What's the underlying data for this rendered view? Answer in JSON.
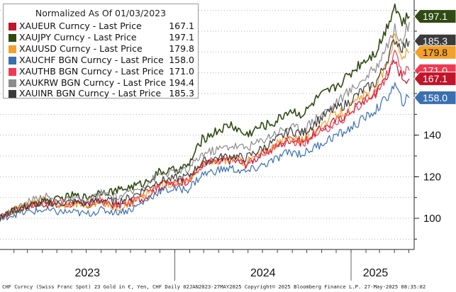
{
  "chart_data": {
    "type": "line",
    "title": "Normalized As Of 01/03/2023",
    "x_start": "2023-01-03",
    "x_end": "2025-05-27",
    "x_tick_labels": [
      "2023",
      "2024",
      "2025"
    ],
    "y_ticks": [
      100,
      120,
      140
    ],
    "ylim": [
      85,
      205
    ],
    "grid": "horizontal-dotted",
    "legend_position": "top-left",
    "series": [
      {
        "name": "XAUEUR Curncy - Last Price",
        "last": "167.1",
        "last_value": 167.1,
        "color": "#c0152a",
        "values": [
          [
            0,
            100
          ],
          [
            30,
            104
          ],
          [
            60,
            106
          ],
          [
            90,
            107
          ],
          [
            120,
            106
          ],
          [
            150,
            107
          ],
          [
            180,
            106
          ],
          [
            210,
            108
          ],
          [
            240,
            106
          ],
          [
            270,
            107
          ],
          [
            300,
            110
          ],
          [
            330,
            115
          ],
          [
            360,
            117
          ],
          [
            390,
            118
          ],
          [
            420,
            126
          ],
          [
            450,
            127
          ],
          [
            480,
            128
          ],
          [
            510,
            126
          ],
          [
            540,
            130
          ],
          [
            570,
            134
          ],
          [
            600,
            138
          ],
          [
            630,
            137
          ],
          [
            660,
            142
          ],
          [
            690,
            146
          ],
          [
            720,
            150
          ],
          [
            750,
            156
          ],
          [
            780,
            160
          ],
          [
            800,
            168
          ],
          [
            820,
            175
          ],
          [
            835,
            168
          ],
          [
            850,
            167.1
          ]
        ]
      },
      {
        "name": "XAUJPY Curncy - Last Price",
        "last": "197.1",
        "last_value": 197.1,
        "color": "#2f4a12",
        "values": [
          [
            0,
            100
          ],
          [
            30,
            104
          ],
          [
            60,
            106
          ],
          [
            90,
            108
          ],
          [
            120,
            109
          ],
          [
            150,
            111
          ],
          [
            180,
            110
          ],
          [
            210,
            113
          ],
          [
            240,
            113
          ],
          [
            270,
            115
          ],
          [
            300,
            117
          ],
          [
            330,
            122
          ],
          [
            360,
            123
          ],
          [
            390,
            125
          ],
          [
            420,
            138
          ],
          [
            450,
            142
          ],
          [
            480,
            145
          ],
          [
            510,
            140
          ],
          [
            540,
            144
          ],
          [
            570,
            146
          ],
          [
            600,
            152
          ],
          [
            630,
            150
          ],
          [
            660,
            158
          ],
          [
            690,
            162
          ],
          [
            720,
            168
          ],
          [
            750,
            175
          ],
          [
            780,
            180
          ],
          [
            800,
            190
          ],
          [
            820,
            203
          ],
          [
            835,
            194
          ],
          [
            850,
            197.1
          ]
        ]
      },
      {
        "name": "XAUUSD Curncy - Last Price",
        "last": "179.8",
        "last_value": 179.8,
        "color": "#f4a02a",
        "values": [
          [
            0,
            100
          ],
          [
            30,
            104
          ],
          [
            60,
            107
          ],
          [
            90,
            109
          ],
          [
            120,
            106
          ],
          [
            150,
            107
          ],
          [
            180,
            106
          ],
          [
            210,
            108
          ],
          [
            240,
            105
          ],
          [
            270,
            107
          ],
          [
            300,
            111
          ],
          [
            330,
            116
          ],
          [
            360,
            117
          ],
          [
            390,
            118
          ],
          [
            420,
            126
          ],
          [
            450,
            127
          ],
          [
            480,
            129
          ],
          [
            510,
            127
          ],
          [
            540,
            131
          ],
          [
            570,
            135
          ],
          [
            600,
            139
          ],
          [
            630,
            138
          ],
          [
            660,
            144
          ],
          [
            690,
            149
          ],
          [
            720,
            152
          ],
          [
            750,
            158
          ],
          [
            780,
            163
          ],
          [
            800,
            172
          ],
          [
            820,
            188
          ],
          [
            835,
            178
          ],
          [
            850,
            179.8
          ]
        ]
      },
      {
        "name": "XAUCHF BGN Curncy - Last Price",
        "last": "158.0",
        "last_value": 158.0,
        "color": "#3a6fb0",
        "values": [
          [
            0,
            100
          ],
          [
            30,
            102
          ],
          [
            60,
            103
          ],
          [
            90,
            104
          ],
          [
            120,
            103
          ],
          [
            150,
            103
          ],
          [
            180,
            102
          ],
          [
            210,
            104
          ],
          [
            240,
            103
          ],
          [
            270,
            104
          ],
          [
            300,
            108
          ],
          [
            330,
            113
          ],
          [
            360,
            114
          ],
          [
            390,
            114
          ],
          [
            420,
            121
          ],
          [
            450,
            123
          ],
          [
            480,
            124
          ],
          [
            510,
            122
          ],
          [
            540,
            125
          ],
          [
            570,
            128
          ],
          [
            600,
            132
          ],
          [
            630,
            131
          ],
          [
            660,
            135
          ],
          [
            690,
            139
          ],
          [
            720,
            142
          ],
          [
            750,
            147
          ],
          [
            780,
            152
          ],
          [
            800,
            157
          ],
          [
            820,
            164
          ],
          [
            835,
            156
          ],
          [
            850,
            158.0
          ]
        ]
      },
      {
        "name": "XAUTHB BGN Curncy - Last Price",
        "last": "171.0",
        "last_value": 171.0,
        "color": "#ee3a52",
        "values": [
          [
            0,
            100
          ],
          [
            30,
            104
          ],
          [
            60,
            106
          ],
          [
            90,
            108
          ],
          [
            120,
            107
          ],
          [
            150,
            108
          ],
          [
            180,
            107
          ],
          [
            210,
            109
          ],
          [
            240,
            107
          ],
          [
            270,
            108
          ],
          [
            300,
            112
          ],
          [
            330,
            116
          ],
          [
            360,
            117
          ],
          [
            390,
            118
          ],
          [
            420,
            126
          ],
          [
            450,
            128
          ],
          [
            480,
            129
          ],
          [
            510,
            127
          ],
          [
            540,
            130
          ],
          [
            570,
            134
          ],
          [
            600,
            137
          ],
          [
            630,
            136
          ],
          [
            660,
            140
          ],
          [
            690,
            145
          ],
          [
            720,
            149
          ],
          [
            750,
            155
          ],
          [
            780,
            160
          ],
          [
            800,
            167
          ],
          [
            820,
            179
          ],
          [
            835,
            170
          ],
          [
            850,
            171.0
          ]
        ]
      },
      {
        "name": "XAUKRW BGN Curncy - Last Price",
        "last": "194.4",
        "last_value": 194.4,
        "color": "#8c8c8c",
        "values": [
          [
            0,
            100
          ],
          [
            30,
            104
          ],
          [
            60,
            108
          ],
          [
            90,
            111
          ],
          [
            120,
            108
          ],
          [
            150,
            109
          ],
          [
            180,
            108
          ],
          [
            210,
            112
          ],
          [
            240,
            110
          ],
          [
            270,
            112
          ],
          [
            300,
            116
          ],
          [
            330,
            121
          ],
          [
            360,
            122
          ],
          [
            390,
            123
          ],
          [
            420,
            131
          ],
          [
            450,
            133
          ],
          [
            480,
            135
          ],
          [
            510,
            134
          ],
          [
            540,
            137
          ],
          [
            570,
            141
          ],
          [
            600,
            144
          ],
          [
            630,
            143
          ],
          [
            660,
            149
          ],
          [
            690,
            154
          ],
          [
            720,
            160
          ],
          [
            750,
            166
          ],
          [
            780,
            172
          ],
          [
            800,
            182
          ],
          [
            820,
            191
          ],
          [
            835,
            186
          ],
          [
            850,
            194.4
          ]
        ]
      },
      {
        "name": "XAUINR BGN Curncy - Last Price",
        "last": "185.3",
        "last_value": 185.3,
        "color": "#3b3b3b",
        "values": [
          [
            0,
            100
          ],
          [
            30,
            104
          ],
          [
            60,
            106
          ],
          [
            90,
            108
          ],
          [
            120,
            107
          ],
          [
            150,
            108
          ],
          [
            180,
            107
          ],
          [
            210,
            109
          ],
          [
            240,
            108
          ],
          [
            270,
            110
          ],
          [
            300,
            114
          ],
          [
            330,
            118
          ],
          [
            360,
            119
          ],
          [
            390,
            120
          ],
          [
            420,
            127
          ],
          [
            450,
            129
          ],
          [
            480,
            130
          ],
          [
            510,
            129
          ],
          [
            540,
            133
          ],
          [
            570,
            137
          ],
          [
            600,
            142
          ],
          [
            630,
            141
          ],
          [
            660,
            147
          ],
          [
            690,
            152
          ],
          [
            720,
            155
          ],
          [
            750,
            161
          ],
          [
            780,
            165
          ],
          [
            800,
            174
          ],
          [
            820,
            186
          ],
          [
            835,
            182
          ],
          [
            850,
            185.3
          ]
        ]
      }
    ]
  },
  "tag_order": [
    "197.1",
    "185.3",
    "171.0",
    "179.8",
    "167.1",
    "158.0"
  ],
  "footer": "CHF Curncy (Swiss Franc Spot) 23 Gold in €, Yen, CHF  Daily 02JAN2023-27MAY2025 Copyright© 2025 Bloomberg Finance L.P.  27-May-2025 08:35:02"
}
